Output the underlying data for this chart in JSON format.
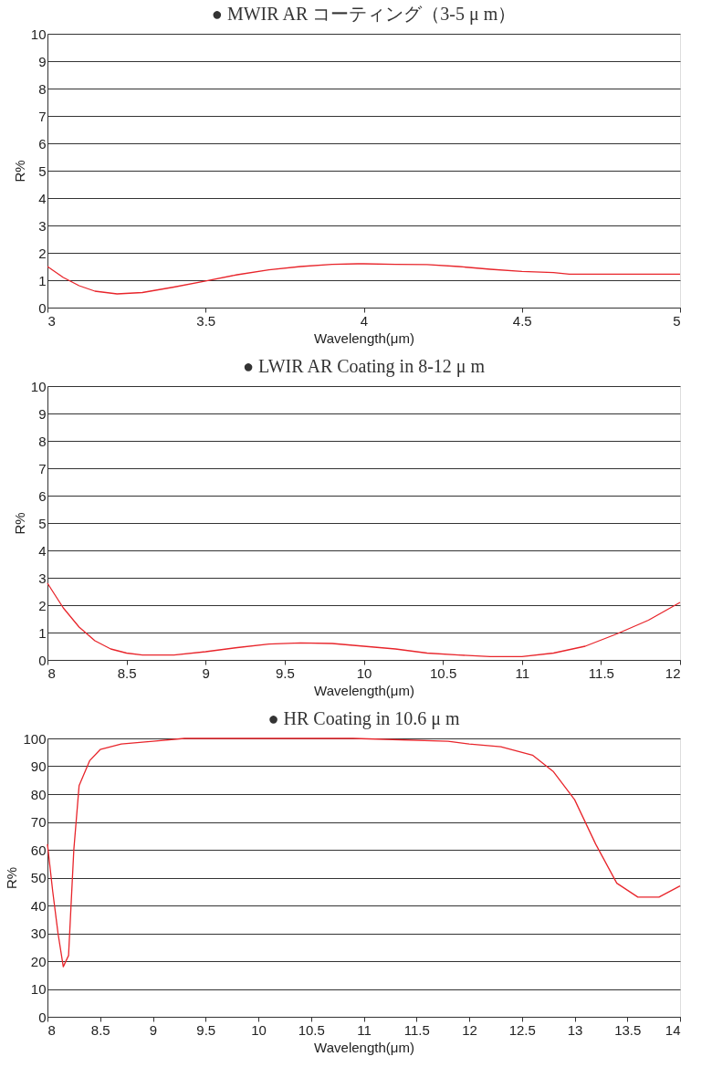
{
  "chart_data": [
    {
      "type": "line",
      "title": "●   MWIR AR コーティング（3-5 μ m）",
      "xlabel": "Wavelength(μm)",
      "ylabel": "R%",
      "grid": "y",
      "xlim": [
        3,
        5
      ],
      "xticks": [
        3,
        3.5,
        4,
        4.5,
        5
      ],
      "ylim": [
        0,
        10
      ],
      "yticks": [
        0,
        1,
        2,
        3,
        4,
        5,
        6,
        7,
        8,
        9,
        10
      ],
      "x": [
        3,
        3.05,
        3.1,
        3.15,
        3.22,
        3.3,
        3.4,
        3.5,
        3.6,
        3.7,
        3.8,
        3.9,
        3.98,
        4.0,
        4.1,
        4.2,
        4.3,
        4.4,
        4.5,
        4.6,
        4.65,
        5
      ],
      "series": [
        {
          "color": "#e8252b",
          "values": [
            1.5,
            1.1,
            0.8,
            0.6,
            0.5,
            0.55,
            0.75,
            0.97,
            1.2,
            1.38,
            1.5,
            1.58,
            1.6,
            1.6,
            1.58,
            1.57,
            1.5,
            1.4,
            1.32,
            1.28,
            1.22,
            1.22
          ]
        }
      ]
    },
    {
      "type": "line",
      "title": "●   LWIR AR Coating in 8-12 μ m",
      "xlabel": "Wavelength(μm)",
      "ylabel": "R%",
      "grid": "y",
      "xlim": [
        8,
        12
      ],
      "xticks": [
        8,
        8.5,
        9,
        9.5,
        10,
        10.5,
        11,
        11.5,
        12
      ],
      "ylim": [
        0,
        10
      ],
      "yticks": [
        0,
        1,
        2,
        3,
        4,
        5,
        6,
        7,
        8,
        9,
        10
      ],
      "x": [
        8,
        8.1,
        8.2,
        8.3,
        8.4,
        8.5,
        8.6,
        8.8,
        9,
        9.2,
        9.4,
        9.6,
        9.8,
        10,
        10.2,
        10.4,
        10.6,
        10.8,
        11,
        11.2,
        11.4,
        11.6,
        11.8,
        12
      ],
      "series": [
        {
          "color": "#e8252b",
          "values": [
            2.8,
            1.9,
            1.2,
            0.7,
            0.4,
            0.25,
            0.18,
            0.18,
            0.3,
            0.45,
            0.58,
            0.62,
            0.6,
            0.5,
            0.4,
            0.25,
            0.18,
            0.12,
            0.12,
            0.25,
            0.5,
            0.95,
            1.45,
            2.1
          ]
        }
      ]
    },
    {
      "type": "line",
      "title": "●   HR Coating in 10.6 μ m",
      "xlabel": "Wavelength(μm)",
      "ylabel": "R%",
      "grid": "y",
      "xlim": [
        8,
        14
      ],
      "xticks": [
        8,
        8.5,
        9,
        9.5,
        10,
        10.5,
        11,
        11.5,
        12,
        12.5,
        13,
        13.5,
        14
      ],
      "ylim": [
        0,
        100
      ],
      "yticks": [
        0,
        10,
        20,
        30,
        40,
        50,
        60,
        70,
        80,
        90,
        100
      ],
      "x": [
        8,
        8.05,
        8.1,
        8.15,
        8.2,
        8.25,
        8.3,
        8.4,
        8.5,
        8.7,
        9,
        9.3,
        10.9,
        11.8,
        12,
        12.3,
        12.6,
        12.8,
        13,
        13.2,
        13.4,
        13.6,
        13.8,
        14
      ],
      "series": [
        {
          "color": "#e8252b",
          "values": [
            62,
            45,
            30,
            18,
            22,
            60,
            83,
            92,
            96,
            98,
            99,
            100,
            100,
            99,
            98,
            97,
            94,
            88,
            78,
            62,
            48,
            43,
            43,
            47
          ]
        }
      ]
    }
  ]
}
